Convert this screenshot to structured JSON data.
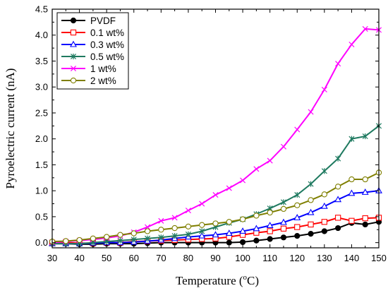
{
  "chart_data": {
    "type": "line",
    "xlabel": "Temperature (",
    "xlabel_sup": "o",
    "xlabel_unit": "C)",
    "ylabel": "Pyroelectric current (nA)",
    "xlim": [
      30,
      150
    ],
    "ylim": [
      -0.1,
      4.5
    ],
    "xticks": [
      "30",
      "40",
      "50",
      "60",
      "70",
      "80",
      "90",
      "100",
      "110",
      "120",
      "130",
      "140",
      "150"
    ],
    "yticks": [
      "0.0",
      "0.5",
      "1.0",
      "1.5",
      "2.0",
      "2.5",
      "3.0",
      "3.5",
      "4.0",
      "4.5"
    ],
    "legend_position": "top-left",
    "series": [
      {
        "name": "PVDF",
        "color": "#000000",
        "marker": "circle-filled",
        "x": [
          30,
          35,
          40,
          45,
          50,
          55,
          60,
          65,
          70,
          75,
          80,
          85,
          90,
          95,
          100,
          105,
          110,
          115,
          120,
          125,
          130,
          135,
          140,
          145,
          150
        ],
        "y": [
          -0.02,
          -0.02,
          -0.03,
          -0.03,
          -0.02,
          -0.02,
          -0.02,
          -0.01,
          0,
          0,
          0,
          0,
          0,
          0,
          0.01,
          0.04,
          0.07,
          0.1,
          0.13,
          0.17,
          0.22,
          0.28,
          0.38,
          0.35,
          0.4
        ]
      },
      {
        "name": "0.1 wt%",
        "color": "#ff0000",
        "marker": "square-open",
        "x": [
          30,
          35,
          40,
          45,
          50,
          55,
          60,
          65,
          70,
          75,
          80,
          85,
          90,
          95,
          100,
          105,
          110,
          115,
          120,
          125,
          130,
          135,
          140,
          145,
          150
        ],
        "y": [
          0,
          0,
          -0.01,
          -0.01,
          0,
          0,
          0.02,
          0.03,
          0.04,
          0.05,
          0.06,
          0.07,
          0.08,
          0.11,
          0.15,
          0.19,
          0.22,
          0.27,
          0.3,
          0.35,
          0.4,
          0.48,
          0.42,
          0.47,
          0.48
        ]
      },
      {
        "name": "0.3 wt%",
        "color": "#0000ff",
        "marker": "triangle-open",
        "x": [
          30,
          35,
          40,
          45,
          50,
          55,
          60,
          65,
          70,
          75,
          80,
          85,
          90,
          95,
          100,
          105,
          110,
          115,
          120,
          125,
          130,
          135,
          140,
          145,
          150
        ],
        "y": [
          -0.02,
          -0.02,
          -0.02,
          -0.01,
          0,
          0,
          0.01,
          0.03,
          0.05,
          0.08,
          0.11,
          0.13,
          0.15,
          0.18,
          0.22,
          0.27,
          0.33,
          0.39,
          0.48,
          0.58,
          0.7,
          0.83,
          0.95,
          0.97,
          1.0
        ]
      },
      {
        "name": "0.5 wt%",
        "color": "#1f7a60",
        "marker": "star",
        "x": [
          30,
          35,
          40,
          45,
          50,
          55,
          60,
          65,
          70,
          75,
          80,
          85,
          90,
          95,
          100,
          105,
          110,
          115,
          120,
          125,
          130,
          135,
          140,
          145,
          150
        ],
        "y": [
          -0.02,
          -0.02,
          -0.02,
          0,
          0.02,
          0.04,
          0.06,
          0.08,
          0.1,
          0.13,
          0.16,
          0.22,
          0.3,
          0.38,
          0.45,
          0.55,
          0.66,
          0.78,
          0.92,
          1.13,
          1.38,
          1.62,
          2.0,
          2.05,
          2.25
        ]
      },
      {
        "name": "1 wt%",
        "color": "#ff00ff",
        "marker": "x",
        "x": [
          30,
          35,
          40,
          45,
          50,
          55,
          60,
          65,
          70,
          75,
          80,
          85,
          90,
          95,
          100,
          105,
          110,
          115,
          120,
          125,
          130,
          135,
          140,
          145,
          150
        ],
        "y": [
          0,
          0.02,
          0.04,
          0.06,
          0.09,
          0.13,
          0.2,
          0.3,
          0.42,
          0.48,
          0.62,
          0.75,
          0.92,
          1.05,
          1.2,
          1.42,
          1.58,
          1.85,
          2.18,
          2.52,
          2.95,
          3.45,
          3.82,
          4.12,
          4.1
        ]
      },
      {
        "name": "2 wt%",
        "color": "#7f7f00",
        "marker": "circle-open",
        "x": [
          30,
          35,
          40,
          45,
          50,
          55,
          60,
          65,
          70,
          75,
          80,
          85,
          90,
          95,
          100,
          105,
          110,
          115,
          120,
          125,
          130,
          135,
          140,
          145,
          150
        ],
        "y": [
          0.02,
          0.03,
          0.05,
          0.08,
          0.11,
          0.15,
          0.18,
          0.22,
          0.25,
          0.28,
          0.31,
          0.34,
          0.37,
          0.4,
          0.45,
          0.52,
          0.58,
          0.65,
          0.72,
          0.82,
          0.93,
          1.08,
          1.22,
          1.22,
          1.35
        ]
      }
    ]
  }
}
